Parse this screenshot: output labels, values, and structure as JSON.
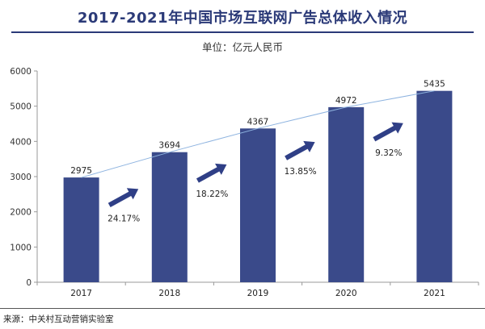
{
  "title": "2017-2021年中国市场互联网广告总体收入情况",
  "unit_label": "单位：亿元人民币",
  "source": "来源：中关村互动营销实验室",
  "colors": {
    "bar": "#3a4a8a",
    "arrow": "#2f3f86",
    "trend": "#8fb4e0",
    "axis": "#999999"
  },
  "chart_data": {
    "type": "bar",
    "title": "2017-2021年中国市场互联网广告总体收入情况",
    "ylabel": "单位：亿元人民币",
    "categories": [
      "2017",
      "2018",
      "2019",
      "2020",
      "2021"
    ],
    "values": [
      2975,
      3694,
      4367,
      4972,
      5435
    ],
    "value_labels": [
      "2975",
      "3694",
      "4367",
      "4972",
      "5435"
    ],
    "growth_rates": [
      "24.17%",
      "18.22%",
      "13.85%",
      "9.32%"
    ],
    "ylim": [
      0,
      6000
    ],
    "yticks": [
      0,
      1000,
      2000,
      3000,
      4000,
      5000,
      6000
    ],
    "ytick_labels": [
      "0",
      "1000",
      "2000",
      "3000",
      "4000",
      "5000",
      "6000"
    ],
    "trend_line": true,
    "grid": false
  }
}
